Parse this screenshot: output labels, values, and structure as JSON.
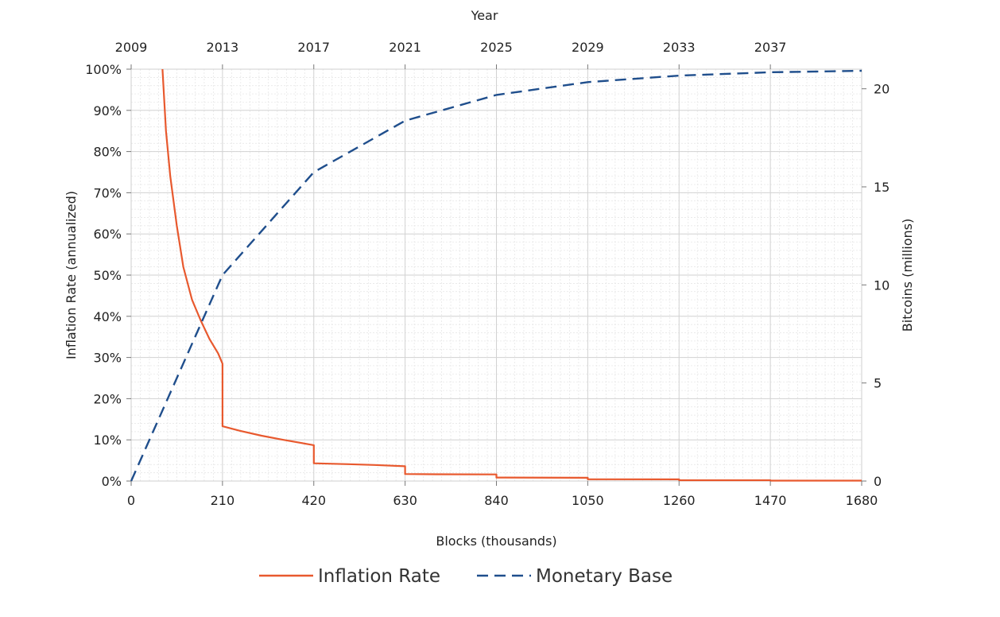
{
  "chart_data": {
    "type": "line",
    "xlabel": "Blocks (thousands)",
    "x2label": "Year",
    "ylabel": "Inflation Rate (annualized)",
    "y2label": "Bitcoins (millions)",
    "xlim": [
      0,
      1680
    ],
    "ylim": [
      0,
      100
    ],
    "y2lim": [
      0,
      21
    ],
    "x_ticks": [
      "0",
      "210",
      "420",
      "630",
      "840",
      "1050",
      "1260",
      "1470",
      "1680"
    ],
    "x_tick_values": [
      0,
      210,
      420,
      630,
      840,
      1050,
      1260,
      1470,
      1680
    ],
    "x2_ticks": [
      "2009",
      "2013",
      "2017",
      "2021",
      "2025",
      "2029",
      "2033",
      "2037"
    ],
    "x2_tick_values": [
      0,
      210,
      420,
      630,
      840,
      1050,
      1260,
      1470
    ],
    "y_ticks": [
      "0%",
      "10%",
      "20%",
      "30%",
      "40%",
      "50%",
      "60%",
      "70%",
      "80%",
      "90%",
      "100%"
    ],
    "y_tick_values": [
      0,
      10,
      20,
      30,
      40,
      50,
      60,
      70,
      80,
      90,
      100
    ],
    "y2_ticks": [
      "0",
      "5",
      "10",
      "15",
      "20"
    ],
    "y2_tick_values": [
      0,
      5,
      10,
      15,
      20
    ],
    "grid": true,
    "legend_position": "bottom-center",
    "series": [
      {
        "name": "Inflation Rate",
        "axis": "left",
        "color": "#e8592e",
        "style": "solid",
        "segments": [
          [
            [
              72,
              100
            ],
            [
              80,
              85
            ],
            [
              90,
              74
            ],
            [
              105,
              62
            ],
            [
              120,
              52
            ],
            [
              140,
              44
            ],
            [
              160,
              39
            ],
            [
              180,
              34.5
            ],
            [
              200,
              31
            ],
            [
              210,
              28.5
            ]
          ],
          [
            [
              210,
              13.3
            ],
            [
              250,
              12.2
            ],
            [
              300,
              11
            ],
            [
              350,
              10
            ],
            [
              420,
              8.7
            ]
          ],
          [
            [
              420,
              4.3
            ],
            [
              500,
              4.1
            ],
            [
              560,
              3.9
            ],
            [
              630,
              3.6
            ]
          ],
          [
            [
              630,
              1.7
            ],
            [
              700,
              1.65
            ],
            [
              840,
              1.6
            ]
          ],
          [
            [
              840,
              0.85
            ],
            [
              1050,
              0.8
            ]
          ],
          [
            [
              1050,
              0.42
            ],
            [
              1260,
              0.4
            ]
          ],
          [
            [
              1260,
              0.2
            ],
            [
              1470,
              0.2
            ]
          ],
          [
            [
              1470,
              0.1
            ],
            [
              1680,
              0.1
            ]
          ]
        ]
      },
      {
        "name": "Monetary Base",
        "axis": "right",
        "color": "#1f4e8c",
        "style": "dashed",
        "points": [
          [
            0,
            0
          ],
          [
            210,
            10.5
          ],
          [
            420,
            15.75
          ],
          [
            630,
            18.375
          ],
          [
            840,
            19.6875
          ],
          [
            1050,
            20.34
          ],
          [
            1260,
            20.67
          ],
          [
            1470,
            20.84
          ],
          [
            1680,
            20.92
          ]
        ]
      }
    ]
  }
}
